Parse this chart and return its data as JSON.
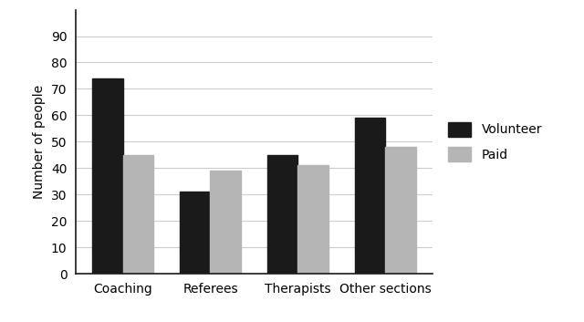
{
  "categories": [
    "Coaching",
    "Referees",
    "Therapists",
    "Other sections"
  ],
  "volunteer_values": [
    74,
    31,
    45,
    59
  ],
  "paid_values": [
    45,
    39,
    41,
    48
  ],
  "volunteer_color": "#1a1a1a",
  "paid_color": "#b5b5b5",
  "ylabel": "Number of people",
  "ylim": [
    0,
    100
  ],
  "yticks": [
    0,
    10,
    20,
    30,
    40,
    50,
    60,
    70,
    80,
    90
  ],
  "legend_labels": [
    "Volunteer",
    "Paid"
  ],
  "bar_width": 0.35,
  "background_color": "#ffffff",
  "grid_color": "#cccccc"
}
